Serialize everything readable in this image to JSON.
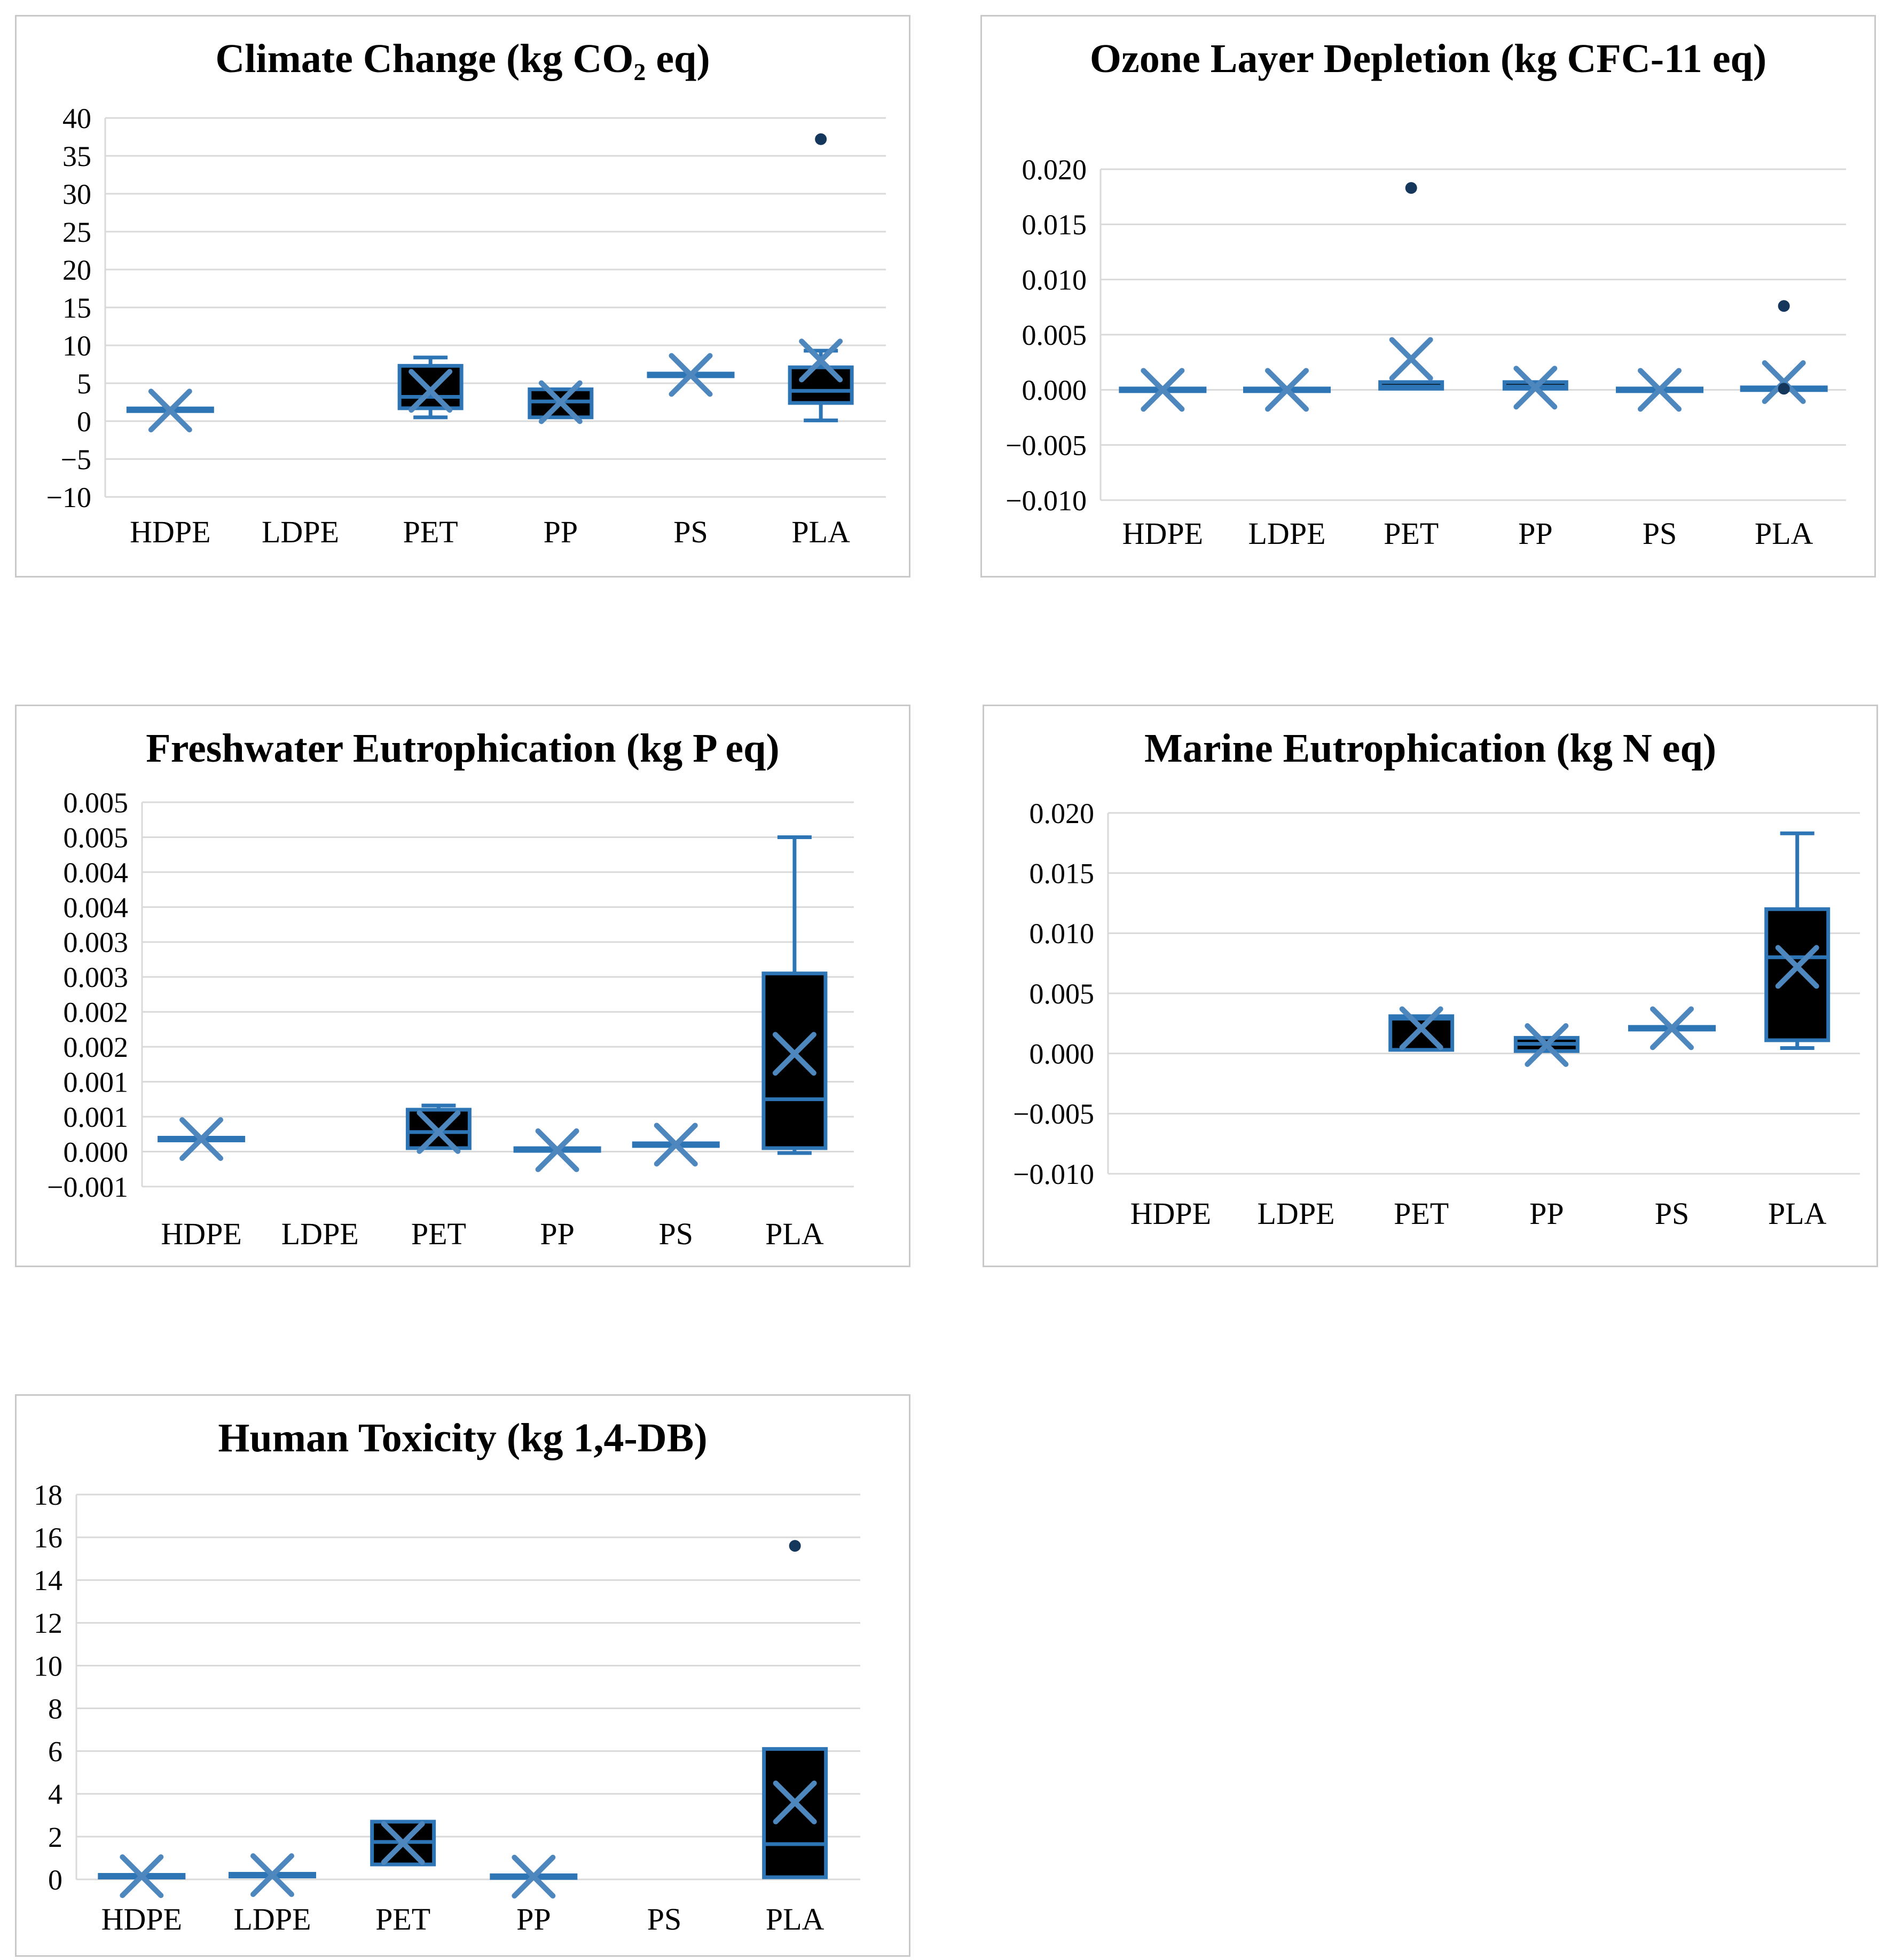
{
  "figure": {
    "kind": "boxplot-grid",
    "panels": 5,
    "shared_categories": [
      "HDPE",
      "LDPE",
      "PET",
      "PP",
      "PS",
      "PLA"
    ]
  },
  "colors": {
    "accent": "#2e75b6",
    "mean_marker": "#4d87bd",
    "box_fill": "#000000",
    "outlier": "#15375c",
    "gridline": "#d9d9d9",
    "panel_border": "#c9c9c9",
    "text": "#000000",
    "background": "#ffffff"
  },
  "chart_data": [
    {
      "id": "climate",
      "type": "box",
      "title": "Climate Change (kg CO₂ eq)",
      "ylim": [
        -10,
        40
      ],
      "ytick_step": 5,
      "ytick_labels": [
        "40",
        "35",
        "30",
        "25",
        "20",
        "15",
        "10",
        "5",
        "0",
        "−5",
        "−10"
      ],
      "grid": true,
      "legend": "none",
      "categories": [
        "HDPE",
        "LDPE",
        "PET",
        "PP",
        "PS",
        "PLA"
      ],
      "boxes": [
        {
          "flat": true,
          "q1": 1.5,
          "median": 1.5,
          "q3": 1.5,
          "mean": 1.4
        },
        null,
        {
          "whisker_low": 0.5,
          "q1": 1.7,
          "median": 3.2,
          "q3": 7.3,
          "whisker_high": 8.4,
          "mean": 4.0
        },
        {
          "q1": 0.5,
          "median": 2.6,
          "q3": 4.2,
          "mean": 2.5
        },
        {
          "flat": true,
          "q1": 6.1,
          "median": 6.1,
          "q3": 6.1,
          "mean": 6.1
        },
        {
          "whisker_low": 0.1,
          "q1": 2.4,
          "median": 4.0,
          "q3": 7.1,
          "whisker_high": 9.3,
          "mean": 8.0,
          "outliers": [
            37.2
          ]
        }
      ]
    },
    {
      "id": "ozone",
      "type": "box",
      "title": "Ozone Layer Depletion (kg CFC-11 eq)",
      "ylim": [
        -0.01,
        0.02
      ],
      "ytick_step": 0.005,
      "ytick_labels": [
        "0.020",
        "0.015",
        "0.010",
        "0.005",
        "0.000",
        "−0.005",
        "−0.010"
      ],
      "grid": true,
      "legend": "none",
      "categories": [
        "HDPE",
        "LDPE",
        "PET",
        "PP",
        "PS",
        "PLA"
      ],
      "boxes": [
        {
          "flat": true,
          "q1": 0.0,
          "median": 0.0,
          "q3": 0.0,
          "mean": 0.0
        },
        {
          "flat": true,
          "q1": 0.0,
          "median": 0.0,
          "q3": 0.0,
          "mean": 0.0
        },
        {
          "q1": 0.0001,
          "median": 0.0003,
          "q3": 0.0007,
          "mean": 0.0028,
          "outliers": [
            0.0183
          ]
        },
        {
          "q1": 0.0001,
          "median": 0.0003,
          "q3": 0.0007,
          "mean": 0.0002
        },
        {
          "flat": true,
          "q1": 0.0,
          "median": 0.0,
          "q3": 0.0,
          "mean": 0.0
        },
        {
          "flat": true,
          "q1": 0.0001,
          "median": 0.0001,
          "q3": 0.0001,
          "mean": 0.0007,
          "outliers": [
            0.0076,
            0.0001
          ]
        }
      ]
    },
    {
      "id": "freshwater",
      "type": "box",
      "title": "Freshwater Eutrophication (kg P eq)",
      "ylim": [
        -0.0005,
        0.005
      ],
      "ytick_step": 0.0005,
      "ytick_labels": [
        "0.005",
        "0.005",
        "0.004",
        "0.004",
        "0.003",
        "0.003",
        "0.002",
        "0.002",
        "0.001",
        "0.001",
        "0.000",
        "−0.001"
      ],
      "grid": true,
      "legend": "none",
      "categories": [
        "HDPE",
        "LDPE",
        "PET",
        "PP",
        "PS",
        "PLA"
      ],
      "boxes": [
        {
          "flat": true,
          "q1": 0.00018,
          "median": 0.00018,
          "q3": 0.00018,
          "mean": 0.00018
        },
        null,
        {
          "q1": 5e-05,
          "median": 0.00028,
          "q3": 0.0006,
          "whisker_high": 0.00066,
          "mean": 0.00028
        },
        {
          "flat": true,
          "q1": 3e-05,
          "median": 3e-05,
          "q3": 3e-05,
          "mean": 2e-05
        },
        {
          "flat": true,
          "q1": 0.0001,
          "median": 0.0001,
          "q3": 0.0001,
          "mean": 0.0001
        },
        {
          "whisker_low": -2e-05,
          "q1": 5e-05,
          "median": 0.00075,
          "q3": 0.00255,
          "whisker_high": 0.0045,
          "mean": 0.0014
        }
      ]
    },
    {
      "id": "marine",
      "type": "box",
      "title": "Marine Eutrophication (kg N eq)",
      "ylim": [
        -0.01,
        0.02
      ],
      "ytick_step": 0.005,
      "ytick_labels": [
        "0.020",
        "0.015",
        "0.010",
        "0.005",
        "0.000",
        "−0.005",
        "−0.010"
      ],
      "grid": true,
      "legend": "none",
      "categories": [
        "HDPE",
        "LDPE",
        "PET",
        "PP",
        "PS",
        "PLA"
      ],
      "boxes": [
        null,
        null,
        {
          "q1": 0.0003,
          "median": 0.0029,
          "q3": 0.0031,
          "mean": 0.0021
        },
        {
          "q1": 0.0002,
          "median": 0.0008,
          "q3": 0.0013,
          "mean": 0.0007
        },
        {
          "flat": true,
          "q1": 0.0021,
          "median": 0.0021,
          "q3": 0.0021,
          "mean": 0.0021
        },
        {
          "whisker_low": 0.00045,
          "q1": 0.0011,
          "median": 0.008,
          "q3": 0.012,
          "whisker_high": 0.0183,
          "mean": 0.0072
        }
      ]
    },
    {
      "id": "humantox",
      "type": "box",
      "title": "Human Toxicity (kg 1,4-DB)",
      "ylim": [
        0,
        18
      ],
      "ytick_step": 2,
      "ytick_labels": [
        "18",
        "16",
        "14",
        "12",
        "10",
        "8",
        "6",
        "4",
        "2",
        "0"
      ],
      "grid": true,
      "legend": "none",
      "categories": [
        "HDPE",
        "LDPE",
        "PET",
        "PP",
        "PS",
        "PLA"
      ],
      "boxes": [
        {
          "flat": true,
          "q1": 0.15,
          "median": 0.15,
          "q3": 0.15,
          "mean": 0.15
        },
        {
          "flat": true,
          "q1": 0.2,
          "median": 0.2,
          "q3": 0.2,
          "mean": 0.2
        },
        {
          "q1": 0.7,
          "median": 1.75,
          "q3": 2.7,
          "mean": 1.7
        },
        {
          "flat": true,
          "q1": 0.13,
          "median": 0.13,
          "q3": 0.13,
          "mean": 0.13
        },
        null,
        {
          "q1": 0.1,
          "median": 1.65,
          "q3": 6.1,
          "mean": 3.6,
          "outliers": [
            15.6
          ]
        }
      ]
    }
  ]
}
